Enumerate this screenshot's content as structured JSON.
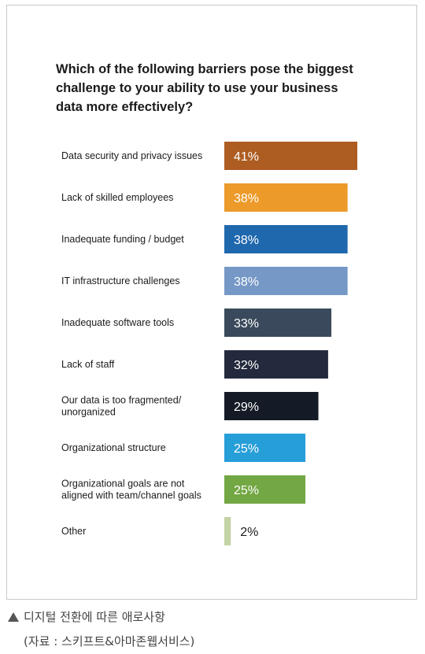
{
  "chart_data": {
    "type": "bar",
    "orientation": "horizontal",
    "title": "Which of the following barriers pose the biggest\nchallenge to your ability to use your business\ndata more effectively?",
    "categories": [
      "Data security and privacy issues",
      "Lack of skilled employees",
      "Inadequate funding / budget",
      "IT infrastructure challenges",
      "Inadequate software tools",
      "Lack of staff",
      "Our data is too fragmented/\nunorganized",
      "Organizational structure",
      "Organizational goals are not\naligned with team/channel goals",
      "Other"
    ],
    "values": [
      41,
      38,
      38,
      38,
      33,
      32,
      29,
      25,
      25,
      2
    ],
    "value_labels": [
      "41%",
      "38%",
      "38%",
      "38%",
      "33%",
      "32%",
      "29%",
      "25%",
      "25%",
      "2%"
    ],
    "colors": [
      "#ad5d22",
      "#ec9a2a",
      "#1f68ae",
      "#7598c6",
      "#3a4a5c",
      "#232a3d",
      "#141b26",
      "#269ed8",
      "#72a743",
      "#c2d3a4"
    ],
    "value_label_colors": [
      "#ffffff",
      "#ffffff",
      "#ffffff",
      "#ffffff",
      "#ffffff",
      "#ffffff",
      "#ffffff",
      "#ffffff",
      "#ffffff",
      "#1b1b1b"
    ],
    "xlim": [
      0,
      41
    ],
    "grid": false
  },
  "caption": {
    "line1": "디지털 전환에 따른 애로사항",
    "line2": "(자료 : 스키프트&아마존웹서비스)"
  }
}
